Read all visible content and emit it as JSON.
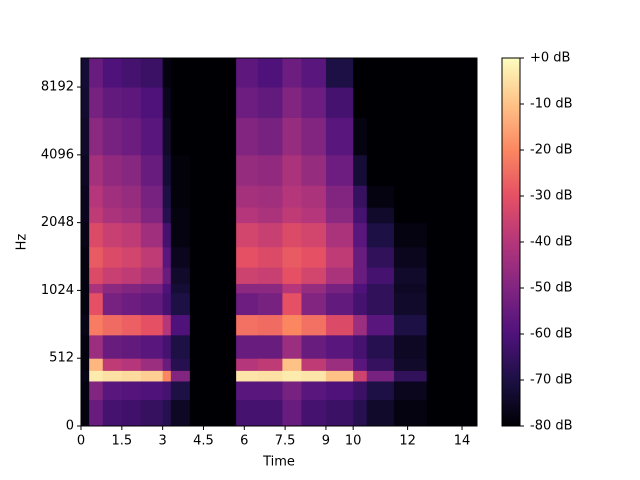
{
  "chart_data": {
    "type": "spectrogram",
    "xlabel": "Time",
    "ylabel": "Hz",
    "x_bins": [
      0,
      0.3,
      0.8,
      1.5,
      2.2,
      3.0,
      3.3,
      4.0,
      5.7,
      6.5,
      7.4,
      8.1,
      9.0,
      10.0,
      10.5,
      11.5,
      12.7,
      14.55
    ],
    "y_bins": [
      0,
      200,
      340,
      420,
      512,
      650,
      800,
      1000,
      1100,
      1300,
      1600,
      2048,
      2400,
      3000,
      4096,
      6000,
      8192,
      11025
    ],
    "values": [
      [
        -78,
        -78,
        -77,
        -78,
        -78,
        -77,
        -78,
        -78,
        -78,
        -78,
        -77,
        -76,
        -76,
        -75,
        -74,
        -73,
        -72
      ],
      [
        -55,
        -50,
        -3,
        -12,
        -45,
        -22,
        -30,
        -42,
        -32,
        -28,
        -32,
        -38,
        -40,
        -43,
        -48,
        -52,
        -55
      ],
      [
        -62,
        -58,
        -5,
        -38,
        -55,
        -25,
        -52,
        -48,
        -36,
        -32,
        -36,
        -42,
        -44,
        -47,
        -52,
        -56,
        -60
      ],
      [
        -63,
        -59,
        -6,
        -40,
        -56,
        -27,
        -54,
        -50,
        -38,
        -34,
        -38,
        -44,
        -46,
        -49,
        -54,
        -57,
        -62
      ],
      [
        -65,
        -60,
        -8,
        -45,
        -58,
        -30,
        -56,
        -52,
        -42,
        -38,
        -44,
        -50,
        -52,
        -55,
        -58,
        -60,
        -64
      ],
      [
        -68,
        -62,
        -20,
        -55,
        -62,
        -40,
        -62,
        -60,
        -55,
        -58,
        -62,
        -68,
        -70,
        -72,
        -74,
        -76,
        -78
      ],
      [
        -75,
        -70,
        -50,
        -68,
        -70,
        -60,
        -70,
        -72,
        -74,
        -76,
        -78,
        -78,
        -79,
        -79,
        -80,
        -80,
        -80
      ],
      [
        -80,
        -80,
        -80,
        -80,
        -80,
        -80,
        -80,
        -80,
        -80,
        -80,
        -80,
        -80,
        -80,
        -80,
        -80,
        -80,
        -80
      ],
      [
        -62,
        -58,
        -4,
        -40,
        -55,
        -24,
        -54,
        -48,
        -35,
        -30,
        -34,
        -40,
        -43,
        -46,
        -50,
        -54,
        -57
      ],
      [
        -62,
        -58,
        -5,
        -38,
        -55,
        -25,
        -52,
        -48,
        -36,
        -32,
        -36,
        -42,
        -44,
        -47,
        -52,
        -56,
        -60
      ],
      [
        -55,
        -52,
        -3,
        -10,
        -45,
        -20,
        -30,
        -40,
        -30,
        -28,
        -32,
        -38,
        -40,
        -42,
        -46,
        -50,
        -54
      ],
      [
        -62,
        -58,
        -4,
        -38,
        -55,
        -24,
        -50,
        -46,
        -34,
        -30,
        -34,
        -40,
        -42,
        -46,
        -50,
        -54,
        -58
      ],
      [
        -64,
        -60,
        -10,
        -45,
        -58,
        -32,
        -56,
        -52,
        -42,
        -38,
        -42,
        -48,
        -50,
        -54,
        -58,
        -62,
        -70
      ],
      [
        -68,
        -64,
        -35,
        -58,
        -62,
        -45,
        -62,
        -60,
        -55,
        -55,
        -58,
        -62,
        -65,
        -72,
        -78,
        -80,
        -80
      ],
      [
        -74,
        -70,
        -52,
        -65,
        -68,
        -58,
        -66,
        -66,
        -62,
        -66,
        -70,
        -74,
        -78,
        -80,
        -80,
        -80,
        -80
      ],
      [
        -78,
        -76,
        -66,
        -74,
        -75,
        -70,
        -74,
        -75,
        -74,
        -76,
        -78,
        -80,
        -80,
        -80,
        -80,
        -80,
        -80
      ],
      [
        -80,
        -80,
        -80,
        -80,
        -80,
        -80,
        -80,
        -80,
        -80,
        -80,
        -80,
        -80,
        -80,
        -80,
        -80,
        -80,
        -80
      ]
    ],
    "xlim": [
      0,
      14.55
    ],
    "xticks": [
      0,
      1.5,
      3,
      4.5,
      6,
      7.5,
      9,
      10,
      12,
      14
    ],
    "ylim": [
      0,
      11025
    ],
    "yscale": "symlog",
    "linthresh": 512,
    "yticks": [
      0,
      512,
      1024,
      2048,
      4096,
      8192
    ],
    "colorscale": [
      "#000004",
      "#1c1044",
      "#4f127b",
      "#812581",
      "#b5367a",
      "#e55064",
      "#fb8761",
      "#fec287",
      "#fcfdbf"
    ],
    "clim": [
      -80,
      0
    ],
    "cticks": [
      {
        "value": 0,
        "label": "+0 dB"
      },
      {
        "value": -10,
        "label": "-10 dB"
      },
      {
        "value": -20,
        "label": "-20 dB"
      },
      {
        "value": -30,
        "label": "-30 dB"
      },
      {
        "value": -40,
        "label": "-40 dB"
      },
      {
        "value": -50,
        "label": "-50 dB"
      },
      {
        "value": -60,
        "label": "-60 dB"
      },
      {
        "value": -70,
        "label": "-70 dB"
      },
      {
        "value": -80,
        "label": "-80 dB"
      }
    ]
  }
}
